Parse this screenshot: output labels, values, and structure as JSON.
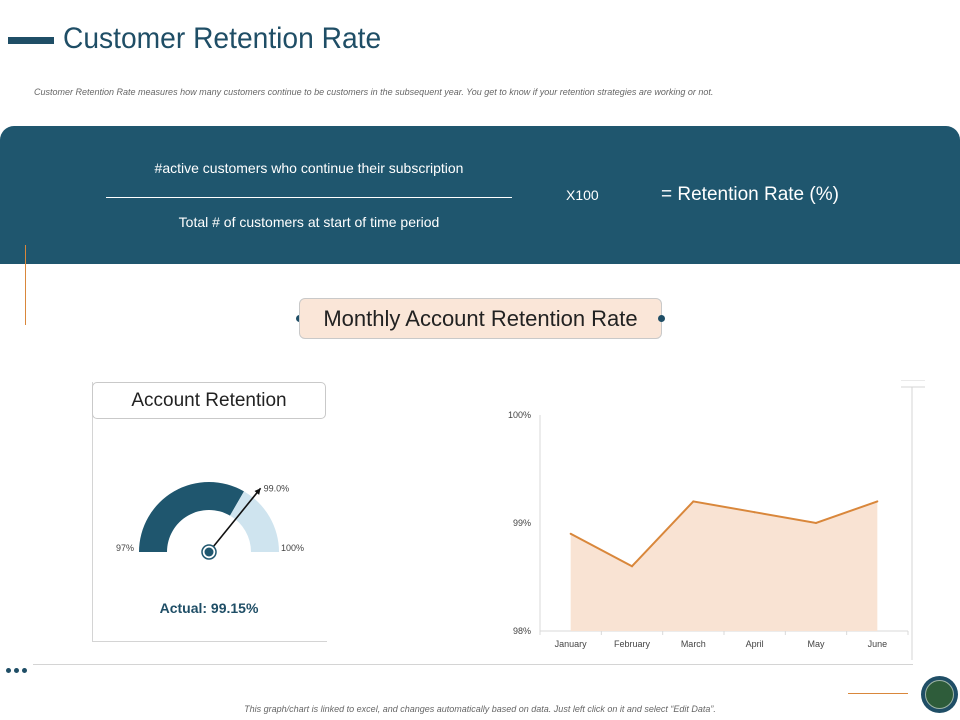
{
  "header": {
    "title": "Customer Retention Rate",
    "subtitle": "Customer Retention Rate measures how many customers continue to be customers in the subsequent year. You get to know if your retention strategies are working or not."
  },
  "formula": {
    "numerator": "#active customers who continue their subscription",
    "denominator": "Total # of customers at start of time period",
    "multiplier": "X100",
    "result": "= Retention Rate (%)"
  },
  "section": {
    "label": "Monthly Account Retention Rate"
  },
  "gauge": {
    "header": "Account Retention",
    "min_label": "97%",
    "max_label": "100%",
    "target_label": "99.0%",
    "min": 97,
    "max": 100,
    "target": 99.0,
    "actual_value": 99.15,
    "actual_text": "Actual: 99.15%",
    "colors": {
      "filled": "#1f566e",
      "remaining": "#cfe4ef",
      "needle": "#111111"
    }
  },
  "chart_data": {
    "type": "area",
    "title": "",
    "xlabel": "",
    "ylabel": "",
    "categories": [
      "January",
      "February",
      "March",
      "April",
      "May",
      "June"
    ],
    "series": [
      {
        "values": [
          98.9,
          98.6,
          99.2,
          99.1,
          99.0,
          99.2
        ]
      }
    ],
    "ylim": [
      98,
      100
    ],
    "yticks": [
      98,
      99,
      100
    ],
    "ytick_labels": [
      "98%",
      "99%",
      "100%"
    ],
    "grid": false,
    "colors": {
      "line": "#d9873b",
      "fill": "#f9e3d3"
    }
  },
  "footer": {
    "note": "This graph/chart is linked to excel, and changes automatically based on data. Just left click on it and select “Edit Data”."
  }
}
